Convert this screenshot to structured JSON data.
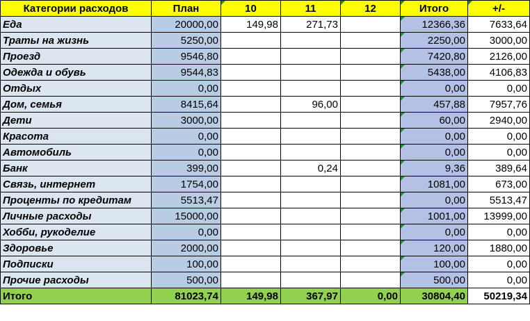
{
  "header": {
    "category": "Категории расходов",
    "plan": "План",
    "d10": "10",
    "d11": "11",
    "d12": "12",
    "total": "Итого",
    "diff": "+/-"
  },
  "rows": [
    {
      "name": "Еда",
      "plan": "20000,00",
      "d10": "149,98",
      "d11": "271,73",
      "d12": "",
      "total": "12366,36",
      "diff": "7633,64"
    },
    {
      "name": "Траты на жизнь",
      "plan": "5250,00",
      "d10": "",
      "d11": "",
      "d12": "",
      "total": "2250,00",
      "diff": "3000,00"
    },
    {
      "name": "Проезд",
      "plan": "9546,80",
      "d10": "",
      "d11": "",
      "d12": "",
      "total": "7420,80",
      "diff": "2126,00"
    },
    {
      "name": "Одежда и обувь",
      "plan": "9544,83",
      "d10": "",
      "d11": "",
      "d12": "",
      "total": "5438,00",
      "diff": "4106,83"
    },
    {
      "name": "Отдых",
      "plan": "0,00",
      "d10": "",
      "d11": "",
      "d12": "",
      "total": "0,00",
      "diff": "0,00"
    },
    {
      "name": "Дом, семья",
      "plan": "8415,64",
      "d10": "",
      "d11": "96,00",
      "d12": "",
      "total": "457,88",
      "diff": "7957,76"
    },
    {
      "name": "Дети",
      "plan": "3000,00",
      "d10": "",
      "d11": "",
      "d12": "",
      "total": "60,00",
      "diff": "2940,00"
    },
    {
      "name": "Красота",
      "plan": "0,00",
      "d10": "",
      "d11": "",
      "d12": "",
      "total": "0,00",
      "diff": "0,00"
    },
    {
      "name": "Автомобиль",
      "plan": "0,00",
      "d10": "",
      "d11": "",
      "d12": "",
      "total": "0,00",
      "diff": "0,00"
    },
    {
      "name": "Банк",
      "plan": "399,00",
      "d10": "",
      "d11": "0,24",
      "d12": "",
      "total": "9,36",
      "diff": "389,64"
    },
    {
      "name": "Связь, интернет",
      "plan": "1754,00",
      "d10": "",
      "d11": "",
      "d12": "",
      "total": "1081,00",
      "diff": "673,00"
    },
    {
      "name": "Проценты по кредитам",
      "plan": "5513,47",
      "d10": "",
      "d11": "",
      "d12": "",
      "total": "0,00",
      "diff": "5513,47"
    },
    {
      "name": "Личные расходы",
      "plan": "15000,00",
      "d10": "",
      "d11": "",
      "d12": "",
      "total": "1001,00",
      "diff": "13999,00"
    },
    {
      "name": "Хобби, рукоделие",
      "plan": "0,00",
      "d10": "",
      "d11": "",
      "d12": "",
      "total": "0,00",
      "diff": "0,00"
    },
    {
      "name": "Здоровье",
      "plan": "2000,00",
      "d10": "",
      "d11": "",
      "d12": "",
      "total": "120,00",
      "diff": "1880,00"
    },
    {
      "name": "Подписки",
      "plan": "100,00",
      "d10": "",
      "d11": "",
      "d12": "",
      "total": "100,00",
      "diff": "0,00"
    },
    {
      "name": "Прочие расходы",
      "plan": "500,00",
      "d10": "",
      "d11": "",
      "d12": "",
      "total": "500,00",
      "diff": "0,00"
    }
  ],
  "footer": {
    "name": "Итого",
    "plan": "81023,74",
    "d10": "149,98",
    "d11": "367,97",
    "d12": "0,00",
    "total": "30804,40",
    "diff": "50219,34"
  },
  "colors": {
    "header_bg": "#ffff00",
    "category_bg": "#dce6f1",
    "plan_bg": "#b8cce4",
    "total_bg": "#b4c1e4",
    "footer_bg": "#92d050",
    "comment_marker": "#1e8c3a"
  }
}
